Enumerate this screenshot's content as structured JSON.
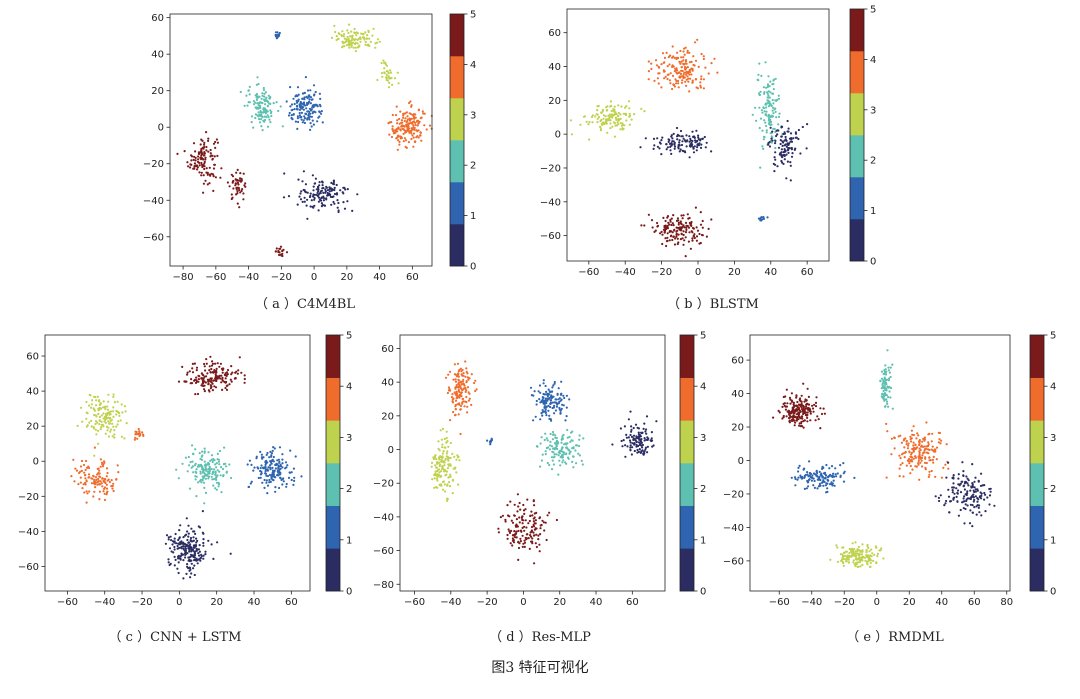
{
  "figure_caption": "图3   特征可视化",
  "colormap": [
    "#2b2d62",
    "#2e64b0",
    "#5ec0b0",
    "#bfd24e",
    "#ef6c2c",
    "#7a1a1a"
  ],
  "colorbar_ticks": [
    "0",
    "1",
    "2",
    "3",
    "4",
    "5"
  ],
  "chart_data": [
    {
      "type": "scatter",
      "caption": "（ a ）C4M4BL",
      "xlim": [
        -88,
        72
      ],
      "ylim": [
        -76,
        62
      ],
      "xticks": [
        -80,
        -60,
        -40,
        -20,
        0,
        20,
        40,
        60
      ],
      "yticks": [
        -60,
        -40,
        -20,
        0,
        20,
        40,
        60
      ],
      "colorbar": {
        "min": 0,
        "max": 5,
        "ticks": [
          0,
          1,
          2,
          3,
          4,
          5
        ]
      },
      "clusters": [
        {
          "class": 5,
          "x": -68,
          "y": -17,
          "spread": [
            8,
            12
          ],
          "n": 120
        },
        {
          "class": 5,
          "x": -47,
          "y": -32,
          "spread": [
            5,
            7
          ],
          "n": 50
        },
        {
          "class": 5,
          "x": -20,
          "y": -68,
          "spread": [
            3,
            2
          ],
          "n": 18
        },
        {
          "class": 1,
          "x": -22,
          "y": 50,
          "spread": [
            2,
            2
          ],
          "n": 14
        },
        {
          "class": 3,
          "x": 25,
          "y": 48,
          "spread": [
            12,
            5
          ],
          "n": 110
        },
        {
          "class": 3,
          "x": 45,
          "y": 30,
          "spread": [
            4,
            6
          ],
          "n": 35
        },
        {
          "class": 4,
          "x": 57,
          "y": 0,
          "spread": [
            10,
            10
          ],
          "n": 170
        },
        {
          "class": 2,
          "x": -32,
          "y": 12,
          "spread": [
            8,
            10
          ],
          "n": 120
        },
        {
          "class": 1,
          "x": -5,
          "y": 10,
          "spread": [
            10,
            10
          ],
          "n": 150
        },
        {
          "class": 0,
          "x": 6,
          "y": -37,
          "spread": [
            14,
            8
          ],
          "n": 140
        }
      ]
    },
    {
      "type": "scatter",
      "caption": "（ b ）BLSTM",
      "xlim": [
        -72,
        72
      ],
      "ylim": [
        -75,
        74
      ],
      "xticks": [
        -60,
        -40,
        -20,
        0,
        20,
        40,
        60
      ],
      "yticks": [
        -60,
        -40,
        -20,
        0,
        20,
        40,
        60
      ],
      "colorbar": {
        "min": 0,
        "max": 5,
        "ticks": [
          0,
          1,
          2,
          3,
          4,
          5
        ]
      },
      "clusters": [
        {
          "class": 3,
          "x": -48,
          "y": 10,
          "spread": [
            12,
            8
          ],
          "n": 130
        },
        {
          "class": 4,
          "x": -10,
          "y": 38,
          "spread": [
            14,
            12
          ],
          "n": 170
        },
        {
          "class": 0,
          "x": -8,
          "y": -5,
          "spread": [
            14,
            5
          ],
          "n": 120
        },
        {
          "class": 2,
          "x": 38,
          "y": 15,
          "spread": [
            6,
            20
          ],
          "n": 130
        },
        {
          "class": 0,
          "x": 48,
          "y": -8,
          "spread": [
            8,
            12
          ],
          "n": 110
        },
        {
          "class": 1,
          "x": 35,
          "y": -50,
          "spread": [
            2,
            1.5
          ],
          "n": 12
        },
        {
          "class": 5,
          "x": -12,
          "y": -56,
          "spread": [
            14,
            8
          ],
          "n": 150
        }
      ]
    },
    {
      "type": "scatter",
      "caption": "（ c ）CNN + LSTM",
      "xlim": [
        -72,
        70
      ],
      "ylim": [
        -74,
        72
      ],
      "xticks": [
        -60,
        -40,
        -20,
        0,
        20,
        40,
        60
      ],
      "yticks": [
        -60,
        -40,
        -20,
        0,
        20,
        40,
        60
      ],
      "colorbar": {
        "min": 0,
        "max": 5,
        "ticks": [
          0,
          1,
          2,
          3,
          4,
          5
        ]
      },
      "clusters": [
        {
          "class": 5,
          "x": 18,
          "y": 48,
          "spread": [
            14,
            8
          ],
          "n": 170
        },
        {
          "class": 3,
          "x": -40,
          "y": 25,
          "spread": [
            10,
            12
          ],
          "n": 140
        },
        {
          "class": 4,
          "x": -45,
          "y": -10,
          "spread": [
            10,
            10
          ],
          "n": 120
        },
        {
          "class": 4,
          "x": -22,
          "y": 15,
          "spread": [
            3,
            3
          ],
          "n": 20
        },
        {
          "class": 2,
          "x": 14,
          "y": -5,
          "spread": [
            10,
            10
          ],
          "n": 160
        },
        {
          "class": 1,
          "x": 50,
          "y": -5,
          "spread": [
            10,
            10
          ],
          "n": 160
        },
        {
          "class": 0,
          "x": 5,
          "y": -50,
          "spread": [
            10,
            12
          ],
          "n": 200
        }
      ]
    },
    {
      "type": "scatter",
      "caption": "（ d ）Res-MLP",
      "xlim": [
        -68,
        78
      ],
      "ylim": [
        -84,
        68
      ],
      "xticks": [
        -60,
        -40,
        -20,
        0,
        20,
        40,
        60
      ],
      "yticks": [
        -80,
        -60,
        -40,
        -20,
        0,
        20,
        40,
        60
      ],
      "colorbar": {
        "min": 0,
        "max": 5,
        "ticks": [
          0,
          1,
          2,
          3,
          4,
          5
        ]
      },
      "clusters": [
        {
          "class": 4,
          "x": -35,
          "y": 35,
          "spread": [
            6,
            14
          ],
          "n": 140
        },
        {
          "class": 3,
          "x": -44,
          "y": -10,
          "spread": [
            6,
            16
          ],
          "n": 140
        },
        {
          "class": 1,
          "x": 15,
          "y": 28,
          "spread": [
            8,
            10
          ],
          "n": 130
        },
        {
          "class": 1,
          "x": -18,
          "y": 5,
          "spread": [
            1.5,
            2
          ],
          "n": 10
        },
        {
          "class": 2,
          "x": 20,
          "y": 0,
          "spread": [
            10,
            10
          ],
          "n": 130
        },
        {
          "class": 0,
          "x": 63,
          "y": 5,
          "spread": [
            8,
            10
          ],
          "n": 110
        },
        {
          "class": 5,
          "x": 0,
          "y": -47,
          "spread": [
            12,
            14
          ],
          "n": 150
        }
      ]
    },
    {
      "type": "scatter",
      "caption": "（ e ）RMDML",
      "xlim": [
        -78,
        82
      ],
      "ylim": [
        -78,
        75
      ],
      "xticks": [
        -60,
        -40,
        -20,
        0,
        20,
        40,
        60,
        80
      ],
      "yticks": [
        -60,
        -40,
        -20,
        0,
        20,
        40,
        60
      ],
      "colorbar": {
        "min": 0,
        "max": 5,
        "ticks": [
          0,
          1,
          2,
          3,
          4,
          5
        ]
      },
      "clusters": [
        {
          "class": 5,
          "x": -48,
          "y": 30,
          "spread": [
            10,
            9
          ],
          "n": 200
        },
        {
          "class": 2,
          "x": 5,
          "y": 45,
          "spread": [
            3,
            12
          ],
          "n": 90
        },
        {
          "class": 1,
          "x": -35,
          "y": -10,
          "spread": [
            14,
            7
          ],
          "n": 130
        },
        {
          "class": 4,
          "x": 25,
          "y": 5,
          "spread": [
            14,
            12
          ],
          "n": 180
        },
        {
          "class": 0,
          "x": 55,
          "y": -20,
          "spread": [
            12,
            14
          ],
          "n": 150
        },
        {
          "class": 3,
          "x": -12,
          "y": -57,
          "spread": [
            12,
            6
          ],
          "n": 160
        }
      ]
    }
  ]
}
